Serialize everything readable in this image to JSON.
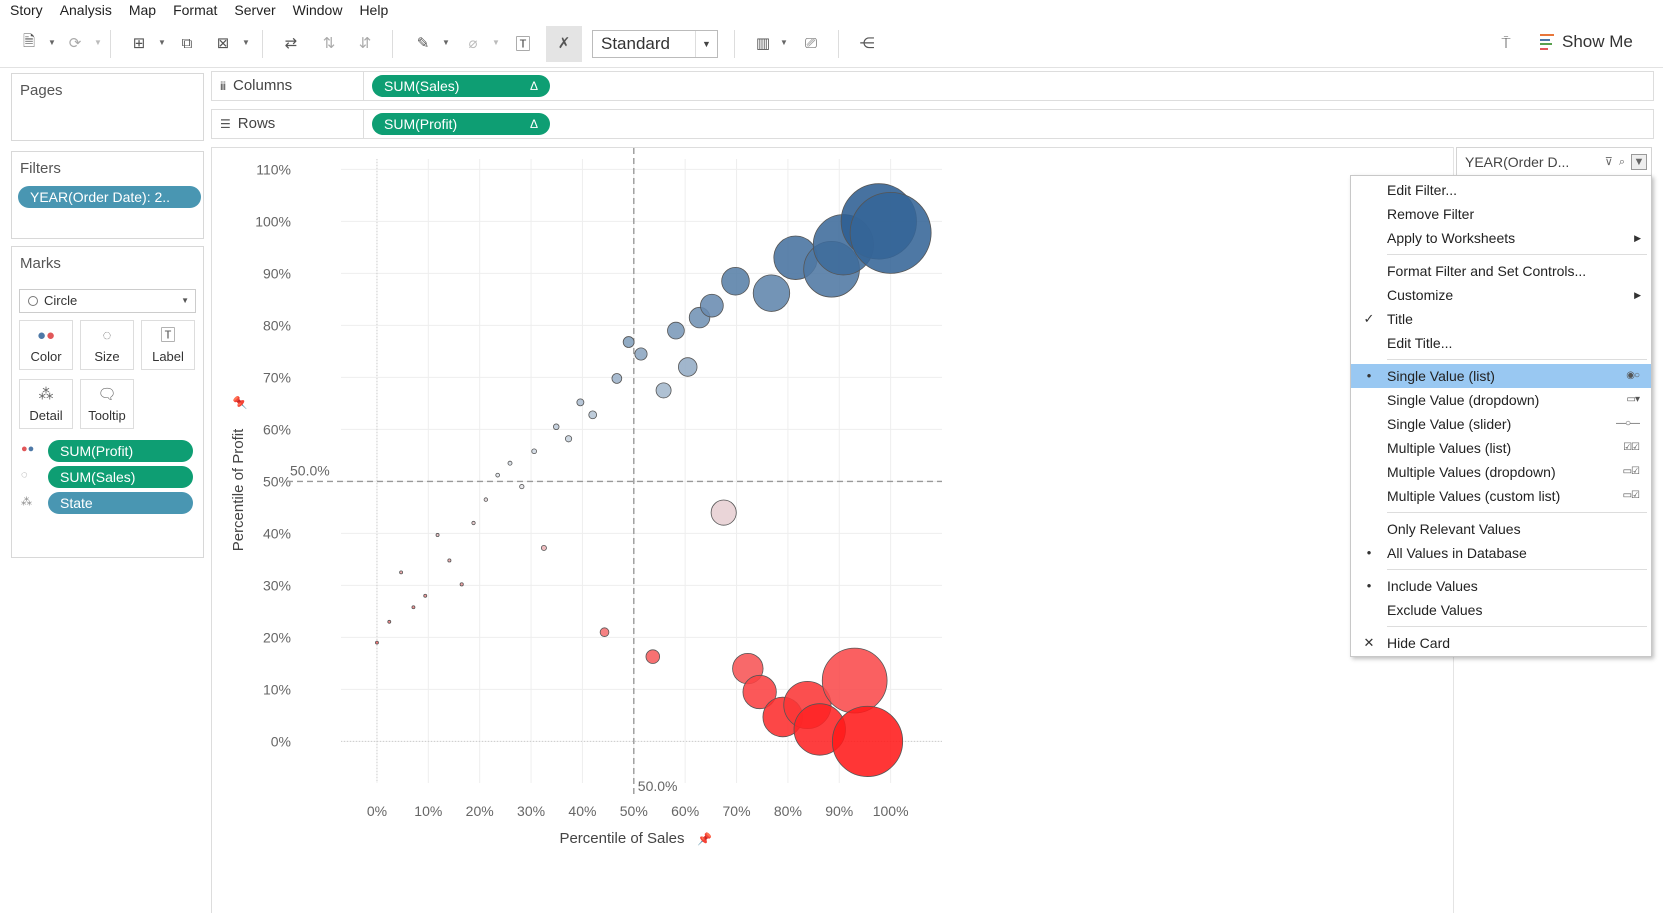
{
  "menu": [
    "Story",
    "Analysis",
    "Map",
    "Format",
    "Server",
    "Window",
    "Help"
  ],
  "toolbar": {
    "fit_select": "Standard",
    "show_me": "Show Me"
  },
  "cards": {
    "pages": "Pages",
    "filters": "Filters",
    "filter_pill": "YEAR(Order Date): 2..",
    "marks": "Marks",
    "mark_type": "Circle",
    "mark_buttons": [
      "Color",
      "Size",
      "Label",
      "Detail",
      "Tooltip"
    ],
    "mark_pills": [
      {
        "label": "SUM(Profit)",
        "kind": "green",
        "icon": "color-icon"
      },
      {
        "label": "SUM(Sales)",
        "kind": "green",
        "icon": "size-icon"
      },
      {
        "label": "State",
        "kind": "blue",
        "icon": "detail-icon"
      }
    ]
  },
  "shelves": {
    "columns_label": "Columns",
    "columns_pill": "SUM(Sales)",
    "rows_label": "Rows",
    "rows_pill": "SUM(Profit)",
    "delta": "Δ"
  },
  "filter_card": {
    "title": "YEAR(Order D..."
  },
  "context_menu": [
    {
      "label": "Edit Filter...",
      "mark": "",
      "sub": false
    },
    {
      "label": "Remove Filter",
      "mark": "",
      "sub": false
    },
    {
      "label": "Apply to Worksheets",
      "mark": "",
      "sub": true
    },
    {
      "sep": true
    },
    {
      "label": "Format Filter and Set Controls...",
      "mark": "",
      "sub": false
    },
    {
      "label": "Customize",
      "mark": "",
      "sub": true
    },
    {
      "label": "Title",
      "mark": "✓",
      "sub": false
    },
    {
      "label": "Edit Title...",
      "mark": "",
      "sub": false
    },
    {
      "sep": true
    },
    {
      "label": "Single Value (list)",
      "mark": "•",
      "sub": false,
      "selected": true,
      "ricon": "◉○"
    },
    {
      "label": "Single Value (dropdown)",
      "mark": "",
      "sub": false,
      "ricon": "▭▾"
    },
    {
      "label": "Single Value (slider)",
      "mark": "",
      "sub": false,
      "ricon": "—○—"
    },
    {
      "label": "Multiple Values (list)",
      "mark": "",
      "sub": false,
      "ricon": "☑☑"
    },
    {
      "label": "Multiple Values (dropdown)",
      "mark": "",
      "sub": false,
      "ricon": "▭☑"
    },
    {
      "label": "Multiple Values (custom list)",
      "mark": "",
      "sub": false,
      "ricon": "▭☑"
    },
    {
      "sep": true
    },
    {
      "label": "Only Relevant Values",
      "mark": "",
      "sub": false
    },
    {
      "label": "All Values in Database",
      "mark": "•",
      "sub": false
    },
    {
      "sep": true
    },
    {
      "label": "Include Values",
      "mark": "•",
      "sub": false
    },
    {
      "label": "Exclude Values",
      "mark": "",
      "sub": false
    },
    {
      "sep": true
    },
    {
      "label": "Hide Card",
      "mark": "✕",
      "sub": false
    }
  ],
  "chart_data": {
    "type": "scatter",
    "xlabel": "Percentile of Sales",
    "ylabel": "Percentile of Profit",
    "xlim": [
      -0.07,
      1.1
    ],
    "ylim": [
      -0.08,
      1.12
    ],
    "x_ticks": [
      0,
      0.1,
      0.2,
      0.3,
      0.4,
      0.5,
      0.6,
      0.7,
      0.8,
      0.9,
      1.0
    ],
    "x_tick_labels": [
      "0%",
      "10%",
      "20%",
      "30%",
      "40%",
      "50%",
      "60%",
      "70%",
      "80%",
      "90%",
      "100%"
    ],
    "y_ticks": [
      0,
      0.1,
      0.2,
      0.3,
      0.4,
      0.5,
      0.6,
      0.7,
      0.8,
      0.9,
      1.0,
      1.1
    ],
    "y_tick_labels": [
      "0%",
      "10%",
      "20%",
      "30%",
      "40%",
      "50%",
      "60%",
      "70%",
      "80%",
      "90%",
      "100%",
      "110%"
    ],
    "ref_lines": {
      "x": 0.5,
      "y": 0.5,
      "x_label": "50.0%",
      "y_label": "50.0%"
    },
    "points": [
      {
        "x": 0.0,
        "y": 0.19
      },
      {
        "x": 0.024,
        "y": 0.23
      },
      {
        "x": 0.047,
        "y": 0.325
      },
      {
        "x": 0.071,
        "y": 0.258
      },
      {
        "x": 0.094,
        "y": 0.28
      },
      {
        "x": 0.118,
        "y": 0.397
      },
      {
        "x": 0.141,
        "y": 0.348
      },
      {
        "x": 0.165,
        "y": 0.302
      },
      {
        "x": 0.188,
        "y": 0.42
      },
      {
        "x": 0.212,
        "y": 0.465
      },
      {
        "x": 0.235,
        "y": 0.512
      },
      {
        "x": 0.259,
        "y": 0.535
      },
      {
        "x": 0.282,
        "y": 0.49
      },
      {
        "x": 0.306,
        "y": 0.558
      },
      {
        "x": 0.325,
        "y": 0.372
      },
      {
        "x": 0.349,
        "y": 0.605
      },
      {
        "x": 0.373,
        "y": 0.582
      },
      {
        "x": 0.396,
        "y": 0.652
      },
      {
        "x": 0.42,
        "y": 0.628
      },
      {
        "x": 0.443,
        "y": 0.21
      },
      {
        "x": 0.467,
        "y": 0.698
      },
      {
        "x": 0.49,
        "y": 0.768
      },
      {
        "x": 0.514,
        "y": 0.745
      },
      {
        "x": 0.537,
        "y": 0.163
      },
      {
        "x": 0.558,
        "y": 0.675
      },
      {
        "x": 0.582,
        "y": 0.79
      },
      {
        "x": 0.605,
        "y": 0.72
      },
      {
        "x": 0.628,
        "y": 0.815
      },
      {
        "x": 0.652,
        "y": 0.838
      },
      {
        "x": 0.675,
        "y": 0.44
      },
      {
        "x": 0.698,
        "y": 0.885
      },
      {
        "x": 0.722,
        "y": 0.14
      },
      {
        "x": 0.745,
        "y": 0.095
      },
      {
        "x": 0.768,
        "y": 0.862
      },
      {
        "x": 0.79,
        "y": 0.047
      },
      {
        "x": 0.815,
        "y": 0.93
      },
      {
        "x": 0.838,
        "y": 0.07
      },
      {
        "x": 0.862,
        "y": 0.023
      },
      {
        "x": 0.885,
        "y": 0.908
      },
      {
        "x": 0.908,
        "y": 0.955
      },
      {
        "x": 0.93,
        "y": 0.117
      },
      {
        "x": 0.955,
        "y": 0.0
      },
      {
        "x": 0.977,
        "y": 1.0
      },
      {
        "x": 1.0,
        "y": 0.978
      }
    ],
    "color_low": "#ff1a1a",
    "color_mid": "#e4e8ec",
    "color_high": "#2e5f93"
  }
}
